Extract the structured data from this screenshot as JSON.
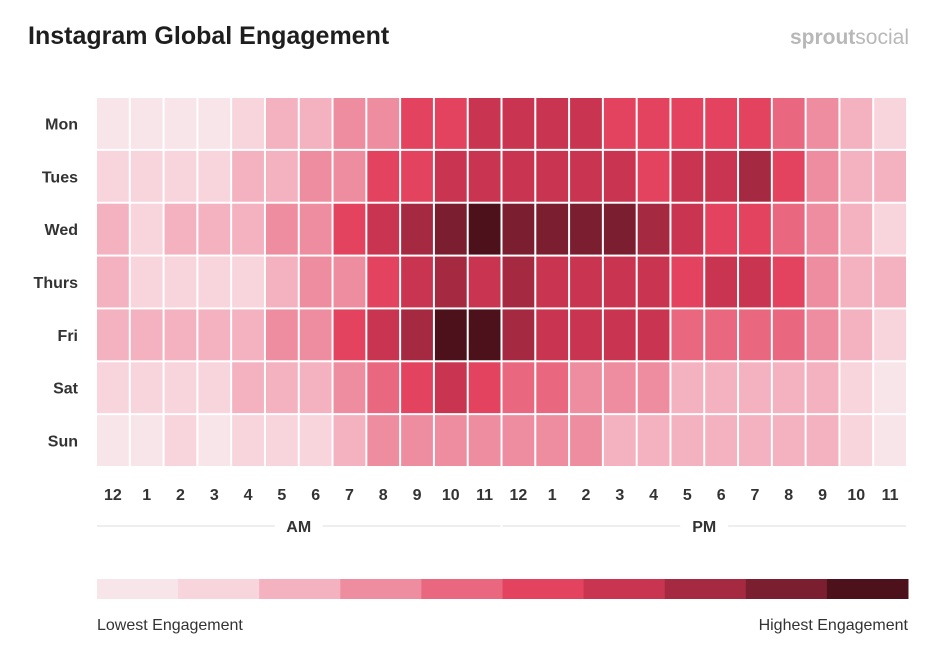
{
  "title": "Instagram Global Engagement",
  "brand": {
    "part1": "sprout",
    "part2": "social"
  },
  "chart_data": {
    "type": "heatmap",
    "title": "Instagram Global Engagement",
    "rows": [
      "Mon",
      "Tues",
      "Wed",
      "Thurs",
      "Fri",
      "Sat",
      "Sun"
    ],
    "columns": [
      "12",
      "1",
      "2",
      "3",
      "4",
      "5",
      "6",
      "7",
      "8",
      "9",
      "10",
      "11",
      "12",
      "1",
      "2",
      "3",
      "4",
      "5",
      "6",
      "7",
      "8",
      "9",
      "10",
      "11"
    ],
    "periods": [
      {
        "label": "AM",
        "columns": [
          0,
          11
        ]
      },
      {
        "label": "PM",
        "columns": [
          12,
          23
        ]
      }
    ],
    "values": [
      [
        1,
        1,
        1,
        1,
        2,
        3,
        3,
        4,
        4,
        6,
        6,
        7,
        7,
        7,
        7,
        6,
        6,
        6,
        6,
        6,
        5,
        4,
        3,
        2
      ],
      [
        2,
        2,
        2,
        2,
        3,
        3,
        4,
        4,
        6,
        6,
        7,
        7,
        7,
        7,
        7,
        7,
        6,
        7,
        7,
        8,
        6,
        4,
        3,
        3
      ],
      [
        3,
        2,
        3,
        3,
        3,
        4,
        4,
        6,
        7,
        8,
        9,
        10,
        9,
        9,
        9,
        9,
        8,
        7,
        6,
        6,
        5,
        4,
        3,
        2
      ],
      [
        3,
        2,
        2,
        2,
        2,
        3,
        4,
        4,
        6,
        7,
        8,
        7,
        8,
        7,
        7,
        7,
        7,
        6,
        7,
        7,
        6,
        4,
        3,
        3
      ],
      [
        3,
        3,
        3,
        3,
        3,
        4,
        4,
        6,
        7,
        8,
        10,
        10,
        8,
        7,
        7,
        7,
        7,
        5,
        5,
        5,
        5,
        4,
        3,
        2
      ],
      [
        2,
        2,
        2,
        2,
        3,
        3,
        3,
        4,
        5,
        6,
        7,
        6,
        5,
        5,
        4,
        4,
        4,
        3,
        3,
        3,
        3,
        3,
        2,
        1
      ],
      [
        1,
        1,
        2,
        1,
        2,
        2,
        2,
        3,
        4,
        4,
        4,
        4,
        4,
        4,
        4,
        3,
        3,
        3,
        3,
        3,
        3,
        3,
        2,
        1
      ]
    ],
    "scale_min": 1,
    "scale_max": 10,
    "color_scale": [
      "#f8e5ea",
      "#f8d5dd",
      "#f4b1bf",
      "#ee8da0",
      "#e9687f",
      "#e3435e",
      "#c93550",
      "#a52a41",
      "#7b1f30",
      "#4d111b"
    ],
    "legend": {
      "low_label": "Lowest Engagement",
      "high_label": "Highest Engagement",
      "placement": "bottom"
    }
  }
}
